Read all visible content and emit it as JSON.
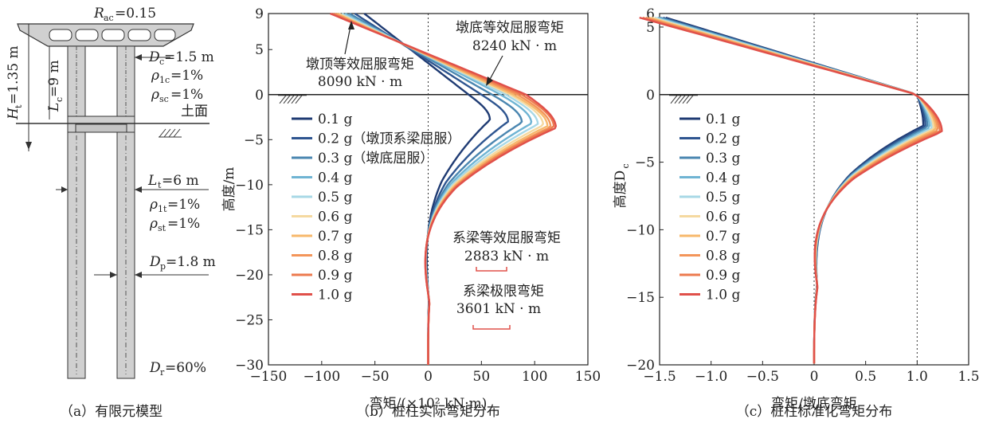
{
  "panel_a": {
    "rac": "R",
    "rac_sub": "ac",
    "rac_val": "=0.15",
    "ht": "H",
    "ht_sub": "t",
    "ht_val": "=1.35 m",
    "lc": "L",
    "lc_sub": "c",
    "lc_val": "=9 m",
    "dc": "D",
    "dc_sub": "c",
    "dc_val": "=1.5 m",
    "rho1c": "ρ",
    "rho1c_sub": "1c",
    "rho1c_val": "=1%",
    "rhosc": "ρ",
    "rhosc_sub": "sc",
    "rhosc_val": "=1%",
    "ground": "土面",
    "lt": "L",
    "lt_sub": "t",
    "lt_val": "=6 m",
    "rho1t": "ρ",
    "rho1t_sub": "1t",
    "rho1t_val": "=1%",
    "rhost": "ρ",
    "rhost_sub": "st",
    "rhost_val": "=1%",
    "dp": "D",
    "dp_sub": "p",
    "dp_val": "=1.8 m",
    "dr": "D",
    "dr_sub": "r",
    "dr_val": "=60%",
    "caption": "（a）有限元模型"
  },
  "chart_data": [
    {
      "type": "line",
      "caption": "（b）桩柱实际弯矩分布",
      "xlabel": "弯矩/(×10² kN·m)",
      "ylabel": "高度/m",
      "xlim": [
        -150,
        150
      ],
      "ylim": [
        -30,
        9
      ],
      "xticks": [
        "−150",
        "−100",
        "−50",
        "0",
        "50",
        "100",
        "150"
      ],
      "yticks": [
        "9",
        "5",
        "0",
        "−5",
        "−10",
        "−15",
        "−20",
        "−25",
        "−30"
      ],
      "series_labels": [
        "0.1 g",
        "0.2 g（墩顶系梁屈服）",
        "0.3 g（墩底屈服）",
        "0.4 g",
        "0.5 g",
        "0.6 g",
        "0.7 g",
        "0.8 g",
        "0.9 g",
        "1.0 g"
      ],
      "annotations": {
        "top_yield_title": "墩顶等效屈服弯矩",
        "top_yield_value": "8090 kN · m",
        "bottom_yield_title": "墩底等效屈服弯矩",
        "bottom_yield_value": "8240 kN · m",
        "beam_yield_title": "系梁等效屈服弯矩",
        "beam_yield_value": "2883 kN · m",
        "beam_ult_title": "系梁极限弯矩",
        "beam_ult_value": "3601 kN · m"
      },
      "curves": [
        {
          "peak_x": 58,
          "peak_y": -2.8,
          "base_x": 38,
          "top_x": -60
        },
        {
          "peak_x": 75,
          "peak_y": -3.0,
          "base_x": 50,
          "top_x": -69
        },
        {
          "peak_x": 88,
          "peak_y": -3.1,
          "base_x": 60,
          "top_x": -74
        },
        {
          "peak_x": 97,
          "peak_y": -3.2,
          "base_x": 68,
          "top_x": -78
        },
        {
          "peak_x": 103,
          "peak_y": -3.3,
          "base_x": 73,
          "top_x": -81
        },
        {
          "peak_x": 108,
          "peak_y": -3.4,
          "base_x": 77,
          "top_x": -84
        },
        {
          "peak_x": 112,
          "peak_y": -3.5,
          "base_x": 80,
          "top_x": -86
        },
        {
          "peak_x": 115,
          "peak_y": -3.6,
          "base_x": 84,
          "top_x": -88
        },
        {
          "peak_x": 118,
          "peak_y": -3.6,
          "base_x": 88,
          "top_x": -90
        },
        {
          "peak_x": 120,
          "peak_y": -3.7,
          "base_x": 92,
          "top_x": -92
        }
      ]
    },
    {
      "type": "line",
      "caption": "（c）桩柱标准化弯矩分布",
      "xlabel": "弯矩/墩底弯矩",
      "ylabel": "高度D",
      "ylabel_sub": "c",
      "xlim": [
        -1.5,
        1.5
      ],
      "ylim": [
        -20,
        6
      ],
      "xticks": [
        "−1.5",
        "−1.0",
        "−0.5",
        "0",
        "0.5",
        "1.0",
        "1.5"
      ],
      "yticks": [
        "6",
        "5",
        "0",
        "−5",
        "−10",
        "−15",
        "−20"
      ],
      "series_labels": [
        "0.1 g",
        "0.2 g",
        "0.3 g",
        "0.4 g",
        "0.5 g",
        "0.6 g",
        "0.7 g",
        "0.8 g",
        "0.9 g",
        "1.0 g"
      ]
    }
  ],
  "colors": [
    "#1f3b73",
    "#2e5590",
    "#4a86b0",
    "#6fb4d3",
    "#a8d8e6",
    "#f5d9a0",
    "#f7b86b",
    "#f3955a",
    "#ec7a4e",
    "#e0504a"
  ]
}
